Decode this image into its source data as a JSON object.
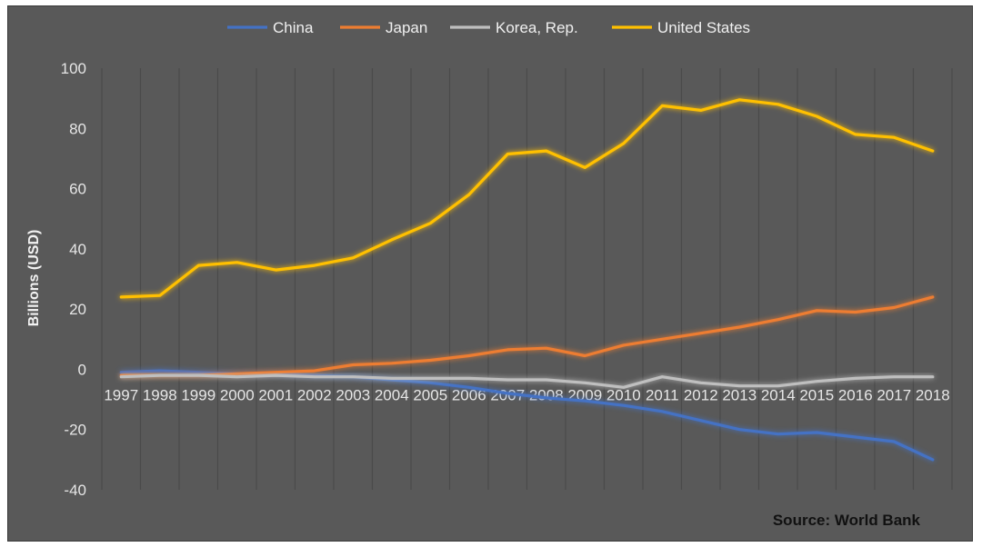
{
  "chart_data": {
    "type": "line",
    "title": "",
    "xlabel": "",
    "ylabel": "Billions (USD)",
    "source": "Source: World Bank",
    "ylim": [
      -40,
      100
    ],
    "yticks": [
      -40,
      -20,
      0,
      20,
      40,
      60,
      80,
      100
    ],
    "grid": "vertical",
    "legend": "top-center",
    "categories": [
      "1997",
      "1998",
      "1999",
      "2000",
      "2001",
      "2002",
      "2003",
      "2004",
      "2005",
      "2006",
      "2007",
      "2008",
      "2009",
      "2010",
      "2011",
      "2012",
      "2013",
      "2014",
      "2015",
      "2016",
      "2017",
      "2018"
    ],
    "series": [
      {
        "name": "China",
        "color": "#4472c4",
        "values": [
          -1,
          -0.5,
          -1,
          -1.5,
          -1.5,
          -2,
          -2.5,
          -3.5,
          -4.5,
          -6,
          -8,
          -9.5,
          -10.5,
          -12,
          -14,
          -17,
          -20,
          -21.5,
          -21,
          -22.5,
          -24,
          -30
        ]
      },
      {
        "name": "Japan",
        "color": "#ed7d31",
        "values": [
          -2,
          -2,
          -2,
          -1.5,
          -1,
          -0.5,
          1.5,
          2,
          3,
          4.5,
          6.5,
          7,
          4.5,
          8,
          10,
          12,
          14,
          16.5,
          19.5,
          19,
          20.5,
          24
        ]
      },
      {
        "name": "Korea, Rep.",
        "color": "#bfbfbf",
        "values": [
          -2.5,
          -2,
          -2,
          -2.5,
          -2,
          -2.5,
          -2.5,
          -3,
          -3,
          -3,
          -3.5,
          -3.5,
          -4.5,
          -6,
          -2.5,
          -4.5,
          -5.5,
          -5.5,
          -4,
          -3,
          -2.5,
          -2.5
        ]
      },
      {
        "name": "United States",
        "color": "#ffc000",
        "values": [
          24,
          24.5,
          34.5,
          35.5,
          33,
          34.5,
          37,
          43,
          48.5,
          58,
          71.5,
          72.5,
          67,
          75,
          87.5,
          86,
          89.5,
          88,
          84,
          78,
          77,
          72.5
        ]
      }
    ]
  }
}
